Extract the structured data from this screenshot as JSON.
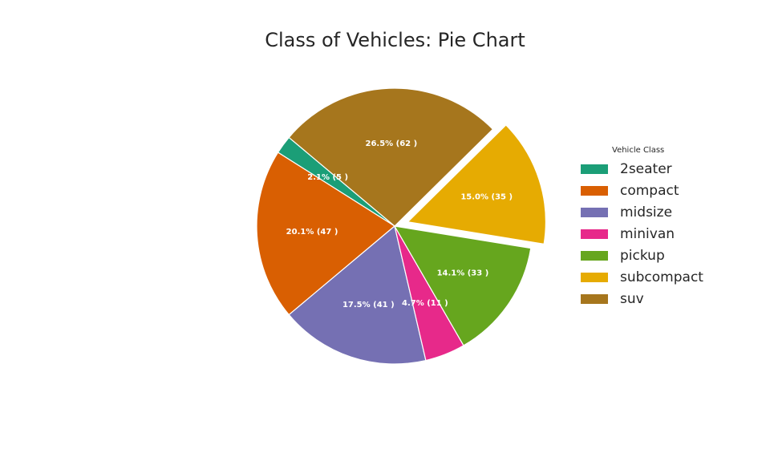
{
  "chart_data": {
    "type": "pie",
    "title": "Class of Vehicles: Pie Chart",
    "legend_title": "Vehicle Class",
    "legend_placement": "right",
    "start_angle_deg": 140,
    "direction": "counterclockwise",
    "slices": [
      {
        "label": "2seater",
        "value": 5,
        "pct_label": "2.1% (5 )",
        "color": "#1b9e77"
      },
      {
        "label": "compact",
        "value": 47,
        "pct_label": "20.1% (47 )",
        "color": "#d95f02"
      },
      {
        "label": "midsize",
        "value": 41,
        "pct_label": "17.5% (41 )",
        "color": "#7570b3"
      },
      {
        "label": "minivan",
        "value": 11,
        "pct_label": "4.7% (11 )",
        "color": "#e7298a"
      },
      {
        "label": "pickup",
        "value": 33,
        "pct_label": "14.1% (33 )",
        "color": "#66a61e"
      },
      {
        "label": "subcompact",
        "value": 35,
        "pct_label": "15.0% (35 )",
        "color": "#e6ab02",
        "exploded": true
      },
      {
        "label": "suv",
        "value": 62,
        "pct_label": "26.5% (62 )",
        "color": "#a6761d"
      }
    ]
  }
}
